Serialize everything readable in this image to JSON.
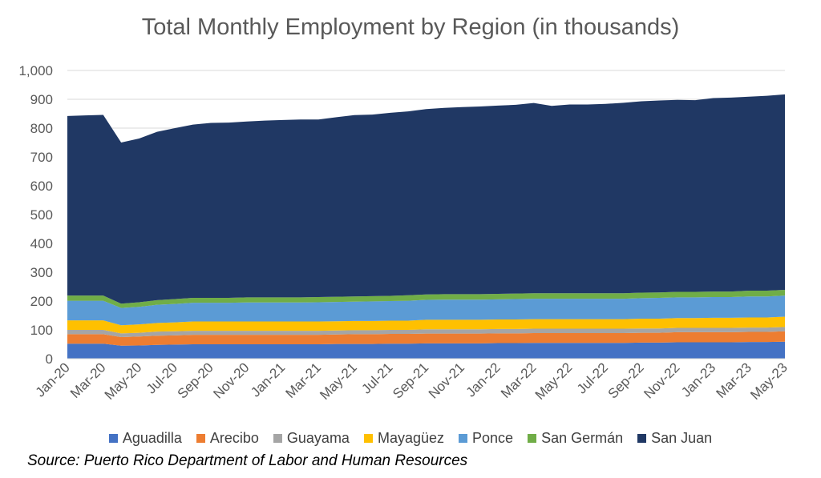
{
  "chart_data": {
    "type": "area",
    "stacked": true,
    "title": "Total Monthly Employment by Region (in thousands)",
    "xlabel": "",
    "ylabel": "",
    "ylim": [
      0,
      1000
    ],
    "y_ticks": [
      "0",
      "100",
      "200",
      "300",
      "400",
      "500",
      "600",
      "700",
      "800",
      "900",
      "1,000"
    ],
    "grid": true,
    "legend_position": "bottom",
    "x": [
      "Jan-20",
      "Feb-20",
      "Mar-20",
      "Apr-20",
      "May-20",
      "Jun-20",
      "Jul-20",
      "Aug-20",
      "Sep-20",
      "Oct-20",
      "Nov-20",
      "Dec-20",
      "Jan-21",
      "Feb-21",
      "Mar-21",
      "Apr-21",
      "May-21",
      "Jun-21",
      "Jul-21",
      "Aug-21",
      "Sep-21",
      "Oct-21",
      "Nov-21",
      "Dec-21",
      "Jan-22",
      "Feb-22",
      "Mar-22",
      "Apr-22",
      "May-22",
      "Jun-22",
      "Jul-22",
      "Aug-22",
      "Sep-22",
      "Oct-22",
      "Nov-22",
      "Dec-22",
      "Jan-23",
      "Feb-23",
      "Mar-23",
      "Apr-23",
      "May-23"
    ],
    "x_tick_labels": [
      "Jan-20",
      "Mar-20",
      "May-20",
      "Jul-20",
      "Sep-20",
      "Nov-20",
      "Jan-21",
      "Mar-21",
      "May-21",
      "Jul-21",
      "Sep-21",
      "Nov-21",
      "Jan-22",
      "Mar-22",
      "May-22",
      "Jul-22",
      "Sep-22",
      "Nov-22",
      "Jan-23",
      "Mar-23",
      "May-23"
    ],
    "series": [
      {
        "name": "Aguadilla",
        "color": "#4472C4",
        "values": [
          52,
          52,
          52,
          45,
          46,
          48,
          49,
          50,
          50,
          50,
          50,
          50,
          50,
          50,
          50,
          51,
          51,
          51,
          52,
          52,
          53,
          53,
          53,
          53,
          54,
          54,
          55,
          55,
          55,
          55,
          55,
          55,
          56,
          56,
          57,
          57,
          57,
          57,
          58,
          58,
          59
        ]
      },
      {
        "name": "Arecibo",
        "color": "#ED7D31",
        "values": [
          33,
          33,
          33,
          30,
          31,
          32,
          32,
          33,
          33,
          33,
          33,
          33,
          33,
          33,
          33,
          33,
          34,
          34,
          34,
          34,
          34,
          34,
          34,
          34,
          34,
          34,
          34,
          34,
          34,
          34,
          34,
          34,
          34,
          34,
          35,
          35,
          35,
          35,
          35,
          35,
          36
        ]
      },
      {
        "name": "Guayama",
        "color": "#A5A5A5",
        "values": [
          15,
          15,
          15,
          13,
          13,
          14,
          14,
          14,
          14,
          14,
          14,
          14,
          14,
          14,
          14,
          14,
          14,
          14,
          14,
          14,
          15,
          15,
          15,
          15,
          15,
          15,
          15,
          15,
          15,
          15,
          15,
          15,
          15,
          15,
          15,
          15,
          15,
          15,
          15,
          15,
          15
        ]
      },
      {
        "name": "Mayagüez",
        "color": "#FFC000",
        "values": [
          33,
          33,
          33,
          28,
          29,
          30,
          31,
          32,
          32,
          32,
          32,
          32,
          32,
          32,
          32,
          32,
          32,
          32,
          32,
          32,
          33,
          33,
          33,
          33,
          33,
          33,
          33,
          33,
          33,
          33,
          33,
          33,
          34,
          34,
          34,
          34,
          35,
          35,
          35,
          35,
          36
        ]
      },
      {
        "name": "Ponce",
        "color": "#5B9BD5",
        "values": [
          68,
          68,
          68,
          60,
          61,
          63,
          64,
          65,
          65,
          65,
          66,
          66,
          66,
          66,
          67,
          67,
          67,
          68,
          68,
          69,
          69,
          70,
          70,
          70,
          70,
          71,
          71,
          71,
          71,
          71,
          71,
          71,
          71,
          72,
          72,
          72,
          72,
          72,
          73,
          73,
          73
        ]
      },
      {
        "name": "San Germán",
        "color": "#70AD47",
        "values": [
          18,
          18,
          18,
          15,
          16,
          16,
          17,
          17,
          17,
          17,
          18,
          18,
          18,
          18,
          18,
          18,
          18,
          18,
          18,
          19,
          19,
          19,
          19,
          19,
          19,
          19,
          19,
          19,
          19,
          19,
          19,
          19,
          19,
          19,
          19,
          19,
          19,
          19,
          20,
          20,
          20
        ]
      },
      {
        "name": "San Juan",
        "color": "#203864",
        "values": [
          623,
          625,
          627,
          559,
          568,
          584,
          593,
          601,
          607,
          608,
          610,
          613,
          615,
          617,
          616,
          623,
          629,
          630,
          635,
          638,
          643,
          646,
          649,
          651,
          653,
          655,
          660,
          650,
          655,
          655,
          657,
          661,
          664,
          666,
          666,
          665,
          671,
          673,
          673,
          676,
          678
        ]
      }
    ],
    "source_note": "Source: Puerto Rico Department of Labor and Human Resources"
  }
}
